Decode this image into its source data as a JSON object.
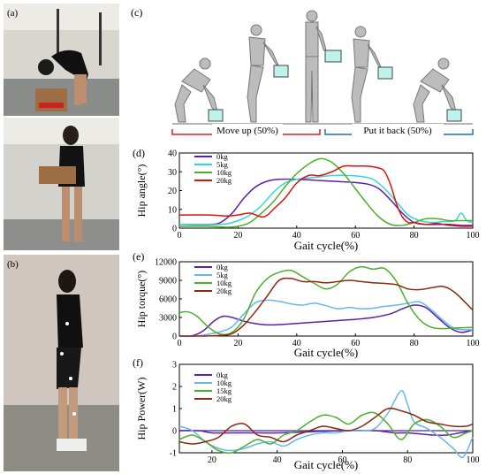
{
  "panel_labels": {
    "a": "(a)",
    "b": "(b)",
    "c": "(c)",
    "d": "(d)",
    "e": "(e)",
    "f": "(f)"
  },
  "phases": {
    "move_up": "Move up (50%)",
    "put_back": "Put it back (50%)"
  },
  "colors": {
    "purple": "#5b1fa8",
    "cyan": "#33d6d6",
    "green": "#4caf2a",
    "red": "#e01010",
    "darkred": "#8b2a0f",
    "lightblue": "#66b7ee",
    "phase_red": "#e02020",
    "phase_blue": "#1f6fc0"
  },
  "chart_data": [
    {
      "id": "d",
      "type": "line",
      "xlabel": "Gait cycle(%)",
      "ylabel": "Hip angle(°)",
      "xlim": [
        0,
        100
      ],
      "ylim": [
        0,
        40
      ],
      "xticks": [
        "0",
        "20",
        "40",
        "60",
        "80",
        "100"
      ],
      "yticks": [
        "0",
        "10",
        "20",
        "30",
        "40"
      ],
      "series": [
        {
          "name": "0kg",
          "color": "#5b1fa8",
          "x": [
            0,
            10,
            14,
            18,
            22,
            26,
            30,
            34,
            40,
            46,
            52,
            58,
            64,
            68,
            72,
            76,
            80,
            84,
            88,
            92,
            96,
            100
          ],
          "y": [
            2,
            2,
            3,
            8,
            16,
            22,
            25,
            26,
            26,
            25.5,
            25,
            24.5,
            23.5,
            21,
            15,
            8,
            3,
            2,
            2,
            2,
            1.5,
            1.5
          ]
        },
        {
          "name": "5kg",
          "color": "#33d6d6",
          "x": [
            0,
            14,
            20,
            24,
            28,
            32,
            36,
            40,
            46,
            52,
            58,
            62,
            66,
            70,
            74,
            78,
            82,
            86,
            90,
            94,
            96,
            98,
            100
          ],
          "y": [
            2,
            2,
            4,
            7,
            12,
            19,
            24,
            26,
            27,
            28,
            28,
            27.5,
            26,
            21,
            14,
            7,
            4,
            3,
            3.5,
            4,
            8,
            4,
            3
          ]
        },
        {
          "name": "10kg",
          "color": "#4caf2a",
          "x": [
            0,
            10,
            16,
            20,
            24,
            28,
            32,
            36,
            40,
            44,
            48,
            52,
            56,
            60,
            64,
            68,
            72,
            76,
            80,
            84,
            88,
            92,
            96,
            100
          ],
          "y": [
            1,
            1,
            0.5,
            1,
            3,
            8,
            14,
            22,
            29,
            34,
            37,
            35,
            29,
            21,
            13,
            6,
            2,
            1.5,
            3,
            5,
            5,
            4,
            4,
            4
          ]
        },
        {
          "name": "20kg",
          "color": "#e01010",
          "x": [
            0,
            10,
            16,
            20,
            24,
            28,
            30,
            32,
            36,
            40,
            44,
            48,
            52,
            56,
            60,
            64,
            68,
            70,
            72,
            74,
            76,
            78,
            80,
            84,
            88,
            92,
            96,
            100
          ],
          "y": [
            7,
            7,
            6.5,
            7,
            8,
            6,
            7,
            10,
            16,
            24,
            28,
            28,
            30,
            33,
            33,
            33,
            32,
            30,
            23,
            13,
            6,
            3,
            3,
            2,
            2.5,
            1.5,
            1,
            1
          ]
        }
      ]
    },
    {
      "id": "e",
      "type": "line",
      "xlabel": "Gait cycle(%)",
      "ylabel": "Hip torque(°)",
      "xlim": [
        0,
        100
      ],
      "ylim": [
        0,
        12000
      ],
      "xticks": [
        "0",
        "20",
        "40",
        "60",
        "80",
        "100"
      ],
      "yticks": [
        "0",
        "3000",
        "6000",
        "9000",
        "12000"
      ],
      "series": [
        {
          "name": "0kg",
          "color": "#5b1fa8",
          "x": [
            0,
            4,
            8,
            12,
            15,
            18,
            22,
            26,
            30,
            36,
            42,
            48,
            54,
            60,
            66,
            72,
            76,
            80,
            84,
            88,
            92,
            96,
            100
          ],
          "y": [
            0,
            0,
            800,
            2500,
            3200,
            3000,
            2400,
            2000,
            1800,
            1900,
            2100,
            2300,
            2500,
            2700,
            3000,
            3600,
            4400,
            5000,
            4600,
            3000,
            1400,
            600,
            1000
          ]
        },
        {
          "name": "5kg",
          "color": "#66b7ee",
          "x": [
            0,
            6,
            10,
            14,
            18,
            22,
            26,
            30,
            34,
            38,
            42,
            46,
            50,
            54,
            58,
            62,
            66,
            70,
            74,
            78,
            82,
            86,
            90,
            94,
            100
          ],
          "y": [
            0,
            0,
            300,
            700,
            1500,
            3600,
            5400,
            5800,
            5600,
            5200,
            5000,
            5300,
            4900,
            4400,
            4600,
            4400,
            4500,
            4800,
            5000,
            5300,
            5500,
            4200,
            2500,
            1200,
            1000
          ]
        },
        {
          "name": "10kg",
          "color": "#4caf2a",
          "x": [
            0,
            3,
            6,
            10,
            14,
            18,
            22,
            26,
            30,
            34,
            38,
            42,
            46,
            50,
            54,
            58,
            62,
            66,
            70,
            74,
            78,
            82,
            86,
            90,
            94,
            100
          ],
          "y": [
            3800,
            3900,
            3200,
            1400,
            300,
            600,
            2800,
            7000,
            9300,
            10300,
            10600,
            9600,
            8500,
            7600,
            8400,
            10400,
            11200,
            10800,
            10900,
            8800,
            5200,
            2600,
            1400,
            1200,
            1300,
            1400
          ]
        },
        {
          "name": "20kg",
          "color": "#8b2a0f",
          "x": [
            0,
            4,
            8,
            14,
            18,
            22,
            26,
            30,
            34,
            38,
            42,
            46,
            50,
            54,
            58,
            62,
            66,
            70,
            74,
            78,
            82,
            86,
            90,
            94,
            100
          ],
          "y": [
            0,
            0,
            0,
            100,
            400,
            1800,
            4000,
            6500,
            9000,
            9300,
            8800,
            8800,
            8600,
            8800,
            9000,
            8800,
            8600,
            8500,
            8300,
            7600,
            7500,
            7800,
            8000,
            7000,
            4200
          ]
        }
      ]
    },
    {
      "id": "f",
      "type": "line",
      "xlabel": "Gait cycle(%)",
      "ylabel": "Hip Power(W)",
      "xlim": [
        10,
        100
      ],
      "ylim": [
        -1,
        3
      ],
      "xticks": [
        "20",
        "40",
        "60",
        "80",
        "100"
      ],
      "yticks": [
        "-1",
        "0",
        "1",
        "2",
        "3"
      ],
      "series": [
        {
          "name": "0kg",
          "color": "#5b1fa8",
          "x": [
            10,
            16,
            20,
            26,
            32,
            40,
            50,
            60,
            70,
            76,
            80,
            84,
            88,
            92,
            96,
            100
          ],
          "y": [
            0,
            0,
            -0.1,
            -0.1,
            -0.1,
            -0.1,
            -0.05,
            0,
            0,
            -0.1,
            -0.1,
            -0.15,
            -0.2,
            -0.2,
            -0.1,
            0
          ]
        },
        {
          "name": "10kg",
          "color": "#66b7ee",
          "x": [
            10,
            14,
            18,
            22,
            26,
            30,
            34,
            38,
            42,
            46,
            50,
            54,
            58,
            62,
            66,
            70,
            74,
            78,
            80,
            82,
            86,
            90,
            94,
            97,
            100
          ],
          "y": [
            0.2,
            0,
            -0.5,
            -0.8,
            -0.9,
            -0.8,
            -0.6,
            -0.5,
            -0.7,
            -0.4,
            -0.2,
            -0.1,
            -0.1,
            0,
            0,
            0.1,
            0.8,
            1.8,
            1.2,
            0.4,
            0.1,
            -0.3,
            -0.8,
            -1.2,
            -0.3
          ]
        },
        {
          "name": "15kg",
          "color": "#4caf2a",
          "x": [
            10,
            14,
            18,
            22,
            26,
            30,
            34,
            38,
            42,
            46,
            50,
            54,
            58,
            62,
            66,
            70,
            74,
            78,
            82,
            86,
            90,
            94,
            98,
            100
          ],
          "y": [
            -0.4,
            -0.2,
            -0.5,
            -0.9,
            -1,
            -0.7,
            -0.4,
            -0.6,
            -0.2,
            0,
            0.4,
            0.7,
            0.6,
            0.3,
            0.7,
            0.8,
            0.3,
            -0.4,
            0.3,
            0.5,
            0.2,
            -0.3,
            -0.1,
            0
          ]
        },
        {
          "name": "20kg",
          "color": "#8b2a0f",
          "x": [
            10,
            14,
            18,
            22,
            26,
            30,
            34,
            38,
            42,
            46,
            50,
            54,
            58,
            62,
            66,
            70,
            74,
            78,
            82,
            86,
            90,
            94,
            98,
            100
          ],
          "y": [
            -0.5,
            -0.6,
            -0.5,
            -0.3,
            0.2,
            0.3,
            -0.2,
            -0.3,
            -0.5,
            -0.2,
            0,
            0.2,
            0.1,
            0,
            0.2,
            0.6,
            1,
            0.9,
            0.7,
            0.4,
            0.3,
            0.2,
            0.2,
            0.3
          ]
        }
      ]
    }
  ]
}
